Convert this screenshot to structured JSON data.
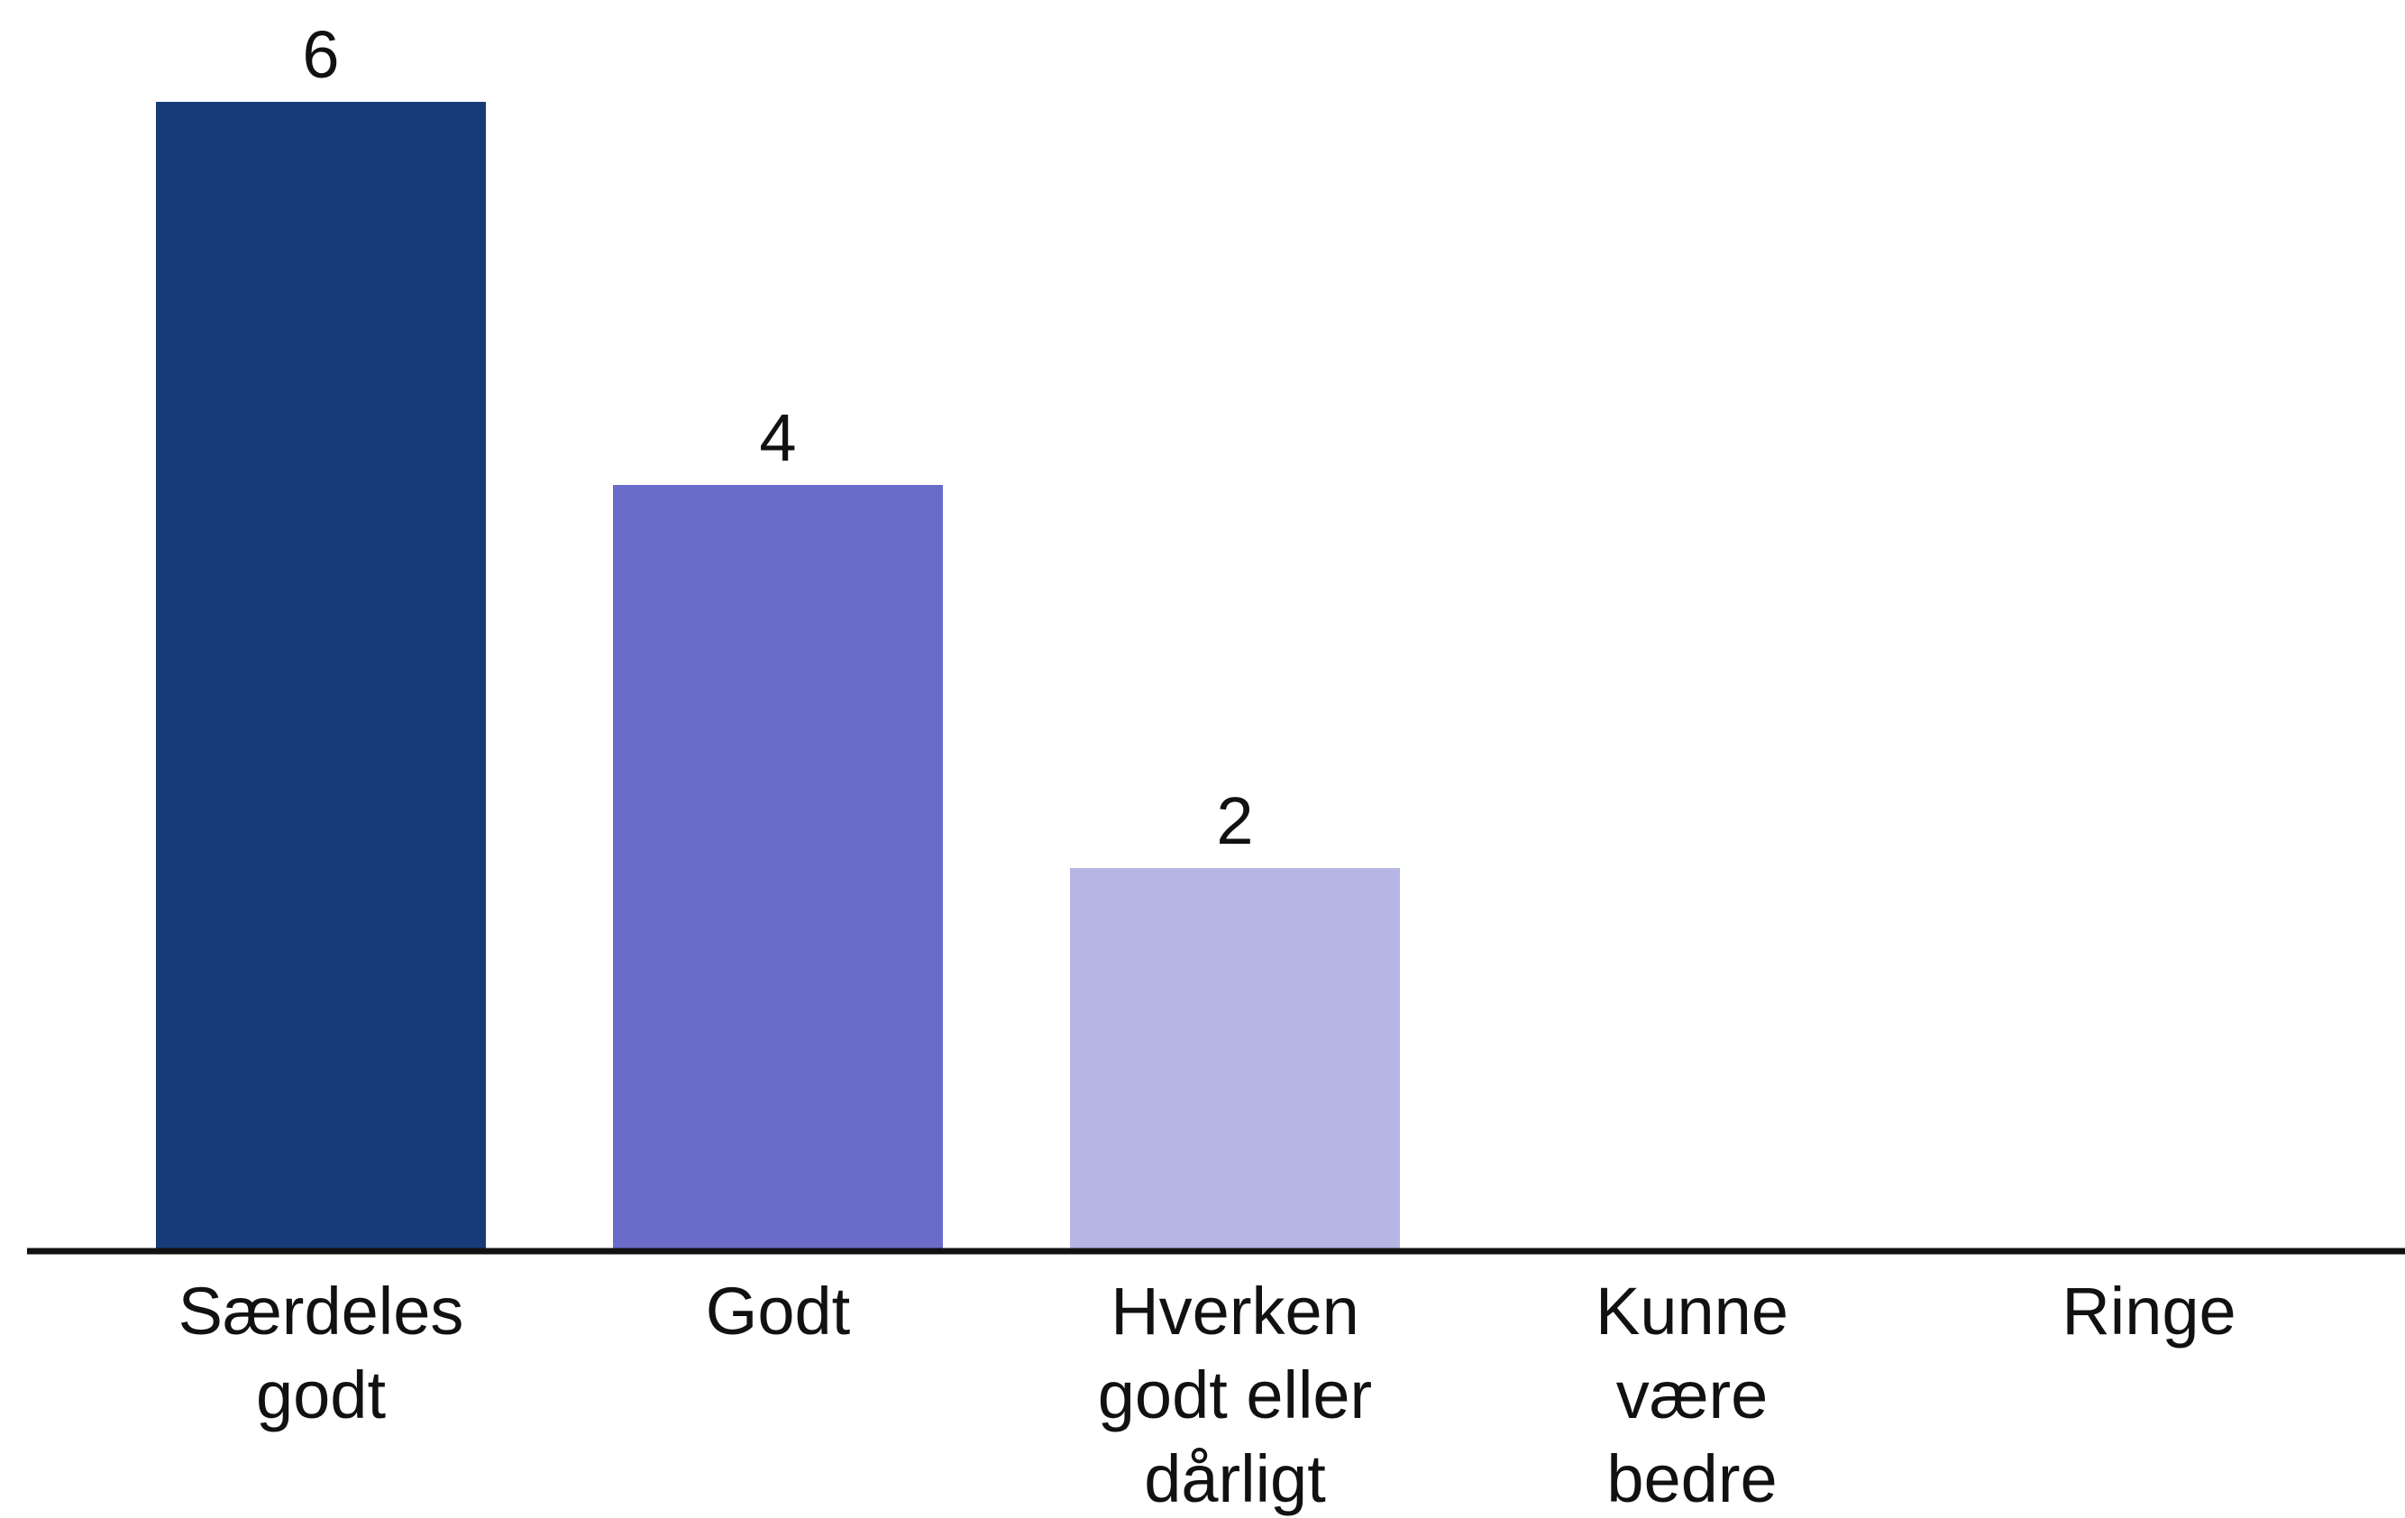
{
  "chart_data": {
    "type": "bar",
    "title": "",
    "xlabel": "",
    "ylabel": "",
    "categories": [
      [
        "Særdeles",
        "godt"
      ],
      [
        "Godt"
      ],
      [
        "Hverken",
        "godt eller",
        "dårligt"
      ],
      [
        "Kunne",
        "være",
        "bedre"
      ],
      [
        "Ringe"
      ]
    ],
    "values": [
      6,
      4,
      2,
      0,
      0
    ],
    "data_labels": [
      "6",
      "4",
      "2",
      "",
      ""
    ],
    "colors": [
      "#173a78",
      "#6b6bc9",
      "#b6b6e4",
      "#d6d6f0",
      "#e6e6f5"
    ],
    "ylim": [
      0,
      6
    ],
    "grid": false,
    "legend": "none"
  }
}
